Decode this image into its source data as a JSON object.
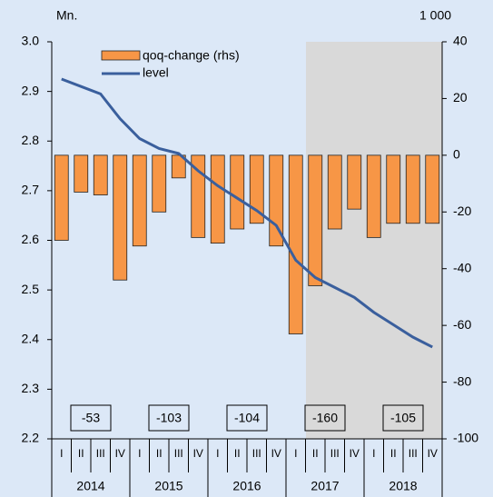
{
  "chart_data": {
    "type": "bar-line",
    "left_unit": "Mn.",
    "right_unit": "1 000",
    "categories": [
      "I",
      "II",
      "III",
      "IV",
      "I",
      "II",
      "III",
      "IV",
      "I",
      "II",
      "III",
      "IV",
      "I",
      "II",
      "III",
      "IV",
      "I",
      "II",
      "III",
      "IV"
    ],
    "years": [
      "2014",
      "2015",
      "2016",
      "2017",
      "2018"
    ],
    "annual_labels": [
      "-53",
      "-103",
      "-104",
      "-160",
      "-105"
    ],
    "series": [
      {
        "name": "qoq-change (rhs)",
        "type": "bar",
        "axis": "y2",
        "color": "#f79646",
        "values": [
          -30,
          -13,
          -14,
          -44,
          -32,
          -20,
          -8,
          -29,
          -31,
          -26,
          -24,
          -32,
          -63,
          -46,
          -26,
          -19,
          -29,
          -24,
          -24,
          -24
        ]
      },
      {
        "name": "level",
        "type": "line",
        "color": "#3a5f9d",
        "values": [
          2.925,
          2.91,
          2.895,
          2.845,
          2.805,
          2.785,
          2.775,
          2.74,
          2.71,
          2.685,
          2.66,
          2.63,
          2.56,
          2.525,
          2.505,
          2.485,
          2.455,
          2.43,
          2.405,
          2.385
        ]
      }
    ],
    "ylim": [
      2.2,
      3.0
    ],
    "yticks": [
      2.2,
      2.3,
      2.4,
      2.5,
      2.6,
      2.7,
      2.8,
      2.9,
      {
        "value": 3,
        "label": "3.0"
      }
    ],
    "y2lim": [
      -100,
      40
    ],
    "y2ticks": [
      -100,
      -80,
      -60,
      -40,
      -20,
      0,
      20,
      40
    ]
  }
}
